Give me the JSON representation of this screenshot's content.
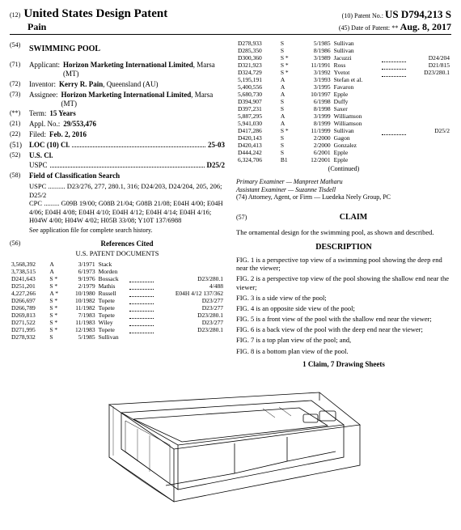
{
  "header": {
    "code12": "(12)",
    "usTitle": "United States Design Patent",
    "code10": "(10) Patent No.:",
    "patentNo": "US D794,213 S",
    "surname": "Pain",
    "code45": "(45) Date of Patent:",
    "stars": "**",
    "date": "Aug. 8, 2017"
  },
  "left": {
    "f54": {
      "tag": "(54)",
      "val": "SWIMMING POOL"
    },
    "f71": {
      "tag": "(71)",
      "label": "Applicant:",
      "val": "Horizon Marketing International Limited",
      "loc": ", Marsa (MT)"
    },
    "f72": {
      "tag": "(72)",
      "label": "Inventor:",
      "val": "Kerry R. Pain",
      "loc": ", Queensland (AU)"
    },
    "f73": {
      "tag": "(73)",
      "label": "Assignee:",
      "val": "Horizon Marketing International Limited",
      "loc": ", Marsa (MT)"
    },
    "fstar": {
      "tag": "(**)",
      "label": "Term:",
      "val": "15 Years"
    },
    "f21": {
      "tag": "(21)",
      "label": "Appl. No.:",
      "val": "29/553,476"
    },
    "f22": {
      "tag": "(22)",
      "label": "Filed:",
      "val": "Feb. 2, 2016"
    },
    "f51": {
      "tag": "(51)",
      "label": "LOC (10) Cl.",
      "val": "25-03"
    },
    "f52a": {
      "tag": "(52)",
      "label": "U.S. Cl."
    },
    "f52b": {
      "label": "USPC",
      "val": "D25/2"
    },
    "f58": {
      "tag": "(58)",
      "label": "Field of Classification Search"
    },
    "uspc": "USPC .......... D23/276, 277, 280.1, 316; D24/203, D24/204, 205, 206; D25/2",
    "cpc": "CPC ......... G09B 19/00; G08B 21/04; G08B 21/08; E04H 4/00; E04H 4/06; E04H 4/08; E04H 4/10; E04H 4/12; E04H 4/14; E04H 4/16; H04W 4/00; H04W 4/02; H05B 33/08; Y10T 137/6988",
    "seeapp": "See application file for complete search history.",
    "f56": {
      "tag": "(56)",
      "label": "References Cited"
    },
    "usdocs": "U.S. PATENT DOCUMENTS",
    "refs1": [
      {
        "n": "3,568,392",
        "m": "A",
        "d": "3/1971",
        "a": "Stack"
      },
      {
        "n": "3,738,515",
        "m": "A",
        "d": "6/1973",
        "a": "Morden"
      },
      {
        "n": "D241,643",
        "m": "S *",
        "d": "9/1976",
        "a": "Bossack",
        "c": "D23/280.1"
      },
      {
        "n": "D251,201",
        "m": "S *",
        "d": "2/1979",
        "a": "Mathis",
        "c": "4/488"
      },
      {
        "n": "4,227,266",
        "m": "A *",
        "d": "10/1980",
        "a": "Russell",
        "c": "E04H 4/12 137/362"
      },
      {
        "n": "D266,697",
        "m": "S *",
        "d": "10/1982",
        "a": "Topete",
        "c": "D23/277"
      },
      {
        "n": "D266,789",
        "m": "S *",
        "d": "11/1982",
        "a": "Topete",
        "c": "D23/277"
      },
      {
        "n": "D269,813",
        "m": "S *",
        "d": "7/1983",
        "a": "Topete",
        "c": "D23/280.1"
      },
      {
        "n": "D271,522",
        "m": "S *",
        "d": "11/1983",
        "a": "Wiley",
        "c": "D23/277"
      },
      {
        "n": "D271,995",
        "m": "S *",
        "d": "12/1983",
        "a": "Topete",
        "c": "D23/280.1"
      },
      {
        "n": "D278,932",
        "m": "S",
        "d": "5/1985",
        "a": "Sullivan"
      }
    ]
  },
  "right": {
    "refs2": [
      {
        "n": "D278,933",
        "m": "S",
        "d": "5/1985",
        "a": "Sullivan"
      },
      {
        "n": "D285,350",
        "m": "S",
        "d": "8/1986",
        "a": "Sullivan"
      },
      {
        "n": "D300,360",
        "m": "S *",
        "d": "3/1989",
        "a": "Jacuzzi",
        "c": "D24/204"
      },
      {
        "n": "D321,923",
        "m": "S *",
        "d": "11/1991",
        "a": "Ross",
        "c": "D21/815"
      },
      {
        "n": "D324,729",
        "m": "S *",
        "d": "3/1992",
        "a": "Yvetot",
        "c": "D23/280.1"
      },
      {
        "n": "5,195,191",
        "m": "A",
        "d": "3/1993",
        "a": "Stefan et al."
      },
      {
        "n": "5,400,556",
        "m": "A",
        "d": "3/1995",
        "a": "Favaron"
      },
      {
        "n": "5,680,730",
        "m": "A",
        "d": "10/1997",
        "a": "Epple"
      },
      {
        "n": "D394,907",
        "m": "S",
        "d": "6/1998",
        "a": "Duffy"
      },
      {
        "n": "D397,231",
        "m": "S",
        "d": "8/1998",
        "a": "Saxer"
      },
      {
        "n": "5,887,295",
        "m": "A",
        "d": "3/1999",
        "a": "Williamson"
      },
      {
        "n": "5,941,030",
        "m": "A",
        "d": "8/1999",
        "a": "Williamson"
      },
      {
        "n": "D417,286",
        "m": "S *",
        "d": "11/1999",
        "a": "Sullivan",
        "c": "D25/2"
      },
      {
        "n": "D420,143",
        "m": "S",
        "d": "2/2000",
        "a": "Gagon"
      },
      {
        "n": "D420,413",
        "m": "S",
        "d": "2/2000",
        "a": "Gonzalez"
      },
      {
        "n": "D444,242",
        "m": "S",
        "d": "6/2001",
        "a": "Epple"
      },
      {
        "n": "6,324,706",
        "m": "B1",
        "d": "12/2001",
        "a": "Epple"
      }
    ],
    "continued": "(Continued)",
    "examiners": {
      "pe": "Primary Examiner — Manpreet Matharu",
      "ae": "Assistant Examiner — Suzanne Tisdell",
      "agent": "(74) Attorney, Agent, or Firm — Luedeka Neely Group, PC"
    },
    "c57": "(57)",
    "claimHdr": "CLAIM",
    "claimText": "The ornamental design for the swimming pool, as shown and described.",
    "descHdr": "DESCRIPTION",
    "desc": [
      "FIG. 1 is a perspective top view of a swimming pool showing the deep end near the viewer;",
      "FIG. 2 is a perspective top view of the pool showing the shallow end near the viewer;",
      "FIG. 3 is a side view of the pool;",
      "FIG. 4 is an opposite side view of the pool;",
      "FIG. 5 is a front view of the pool with the shallow end near the viewer;",
      "FIG. 6 is a back view of the pool with the deep end near the viewer;",
      "FIG. 7 is a top plan view of the pool; and,",
      "FIG. 8 is a bottom plan view of the pool."
    ],
    "claimsLine": "1 Claim, 7 Drawing Sheets"
  }
}
